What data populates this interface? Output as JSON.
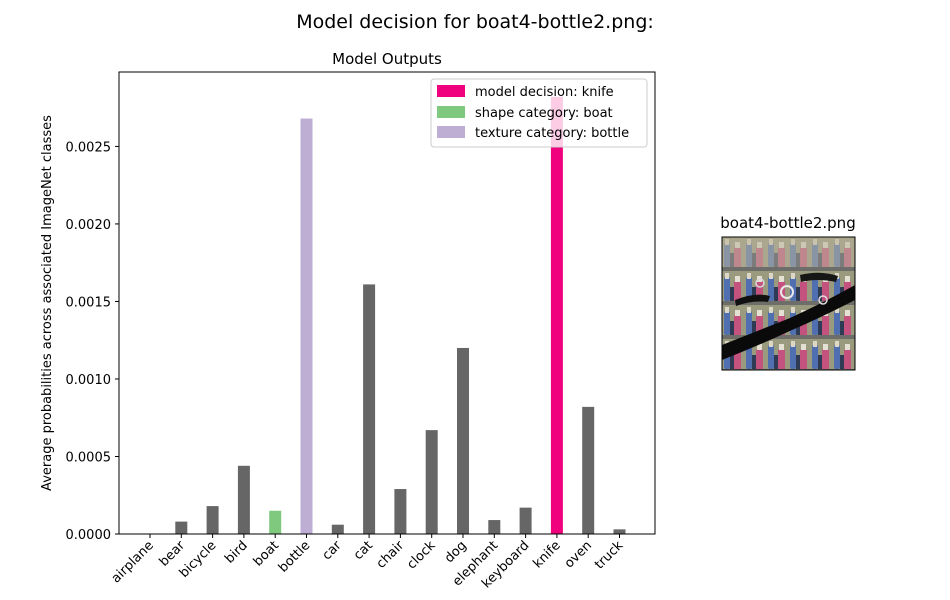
{
  "figure": {
    "suptitle": "Model decision for boat4-bottle2.png:"
  },
  "chart_data": {
    "type": "bar",
    "title": "Model Outputs",
    "xlabel": "",
    "ylabel": "Average probabilities across associated ImageNet classes",
    "ylim": [
      0,
      0.00298
    ],
    "yticks": [
      "0.0000",
      "0.0005",
      "0.0010",
      "0.0015",
      "0.0020",
      "0.0025"
    ],
    "ytick_values": [
      0,
      0.0005,
      0.001,
      0.0015,
      0.002,
      0.0025
    ],
    "categories": [
      "airplane",
      "bear",
      "bicycle",
      "bird",
      "boat",
      "bottle",
      "car",
      "cat",
      "chair",
      "clock",
      "dog",
      "elephant",
      "keyboard",
      "knife",
      "oven",
      "truck"
    ],
    "values": [
      0.0,
      8e-05,
      0.00018,
      0.00044,
      0.00015,
      0.00268,
      6e-05,
      0.00161,
      0.00029,
      0.00067,
      0.0012,
      9e-05,
      0.00017,
      0.00282,
      0.00082,
      3e-05
    ],
    "bar_colors": [
      "#666666",
      "#666666",
      "#666666",
      "#666666",
      "#7fc97f",
      "#beaed4",
      "#666666",
      "#666666",
      "#666666",
      "#666666",
      "#666666",
      "#666666",
      "#666666",
      "#f0027f",
      "#666666",
      "#666666"
    ],
    "legend": {
      "position": "upper right",
      "entries": [
        {
          "label": "model decision: knife",
          "color": "#f0027f"
        },
        {
          "label": "shape category: boat",
          "color": "#7fc97f"
        },
        {
          "label": "texture category: bottle",
          "color": "#beaed4"
        }
      ]
    },
    "grid": false
  },
  "stimulus": {
    "title": "boat4-bottle2.png",
    "icon": "stimulus-image-thumbnail"
  }
}
